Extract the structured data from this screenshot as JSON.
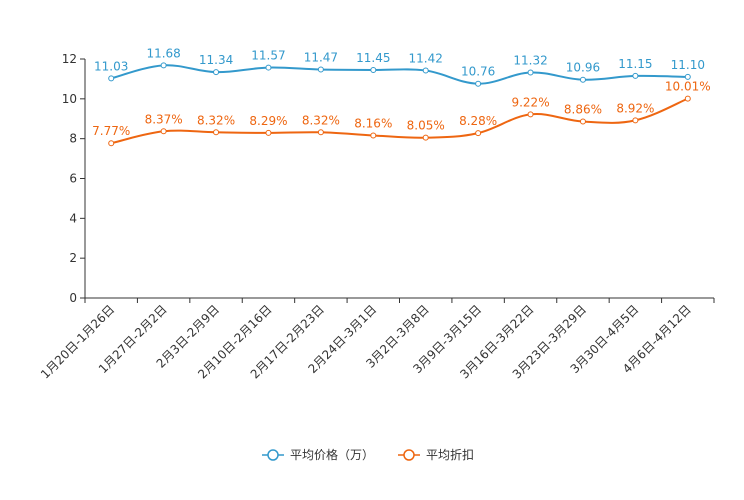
{
  "chart_data": {
    "type": "line",
    "title": "",
    "xlabel": "",
    "ylabel": "",
    "ylim": [
      0,
      12
    ],
    "yticks": [
      0,
      2,
      4,
      6,
      8,
      10,
      12
    ],
    "grid": false,
    "legend_position": "bottom-center",
    "categories": [
      "1月20日-1月26日",
      "1月27日-2月2日",
      "2月3日-2月9日",
      "2月10日-2月16日",
      "2月17日-2月23日",
      "2月24日-3月1日",
      "3月2日-3月8日",
      "3月9日-3月15日",
      "3月16日-3月22日",
      "3月23日-3月29日",
      "3月30日-4月5日",
      "4月6日-4月12日"
    ],
    "series": [
      {
        "name": "平均价格（万）",
        "color": "#3399cc",
        "values": [
          11.03,
          11.68,
          11.34,
          11.57,
          11.47,
          11.45,
          11.42,
          10.76,
          11.32,
          10.96,
          11.15,
          11.1
        ],
        "labels": [
          "11.03",
          "11.68",
          "11.34",
          "11.57",
          "11.47",
          "11.45",
          "11.42",
          "10.76",
          "11.32",
          "10.96",
          "11.15",
          "11.10"
        ]
      },
      {
        "name": "平均折扣",
        "color": "#ee6611",
        "values": [
          7.77,
          8.37,
          8.32,
          8.29,
          8.32,
          8.16,
          8.05,
          8.28,
          9.22,
          8.86,
          8.92,
          10.01
        ],
        "labels": [
          "7.77%",
          "8.37%",
          "8.32%",
          "8.29%",
          "8.32%",
          "8.16%",
          "8.05%",
          "8.28%",
          "9.22%",
          "8.86%",
          "8.92%",
          "10.01%"
        ]
      }
    ]
  }
}
